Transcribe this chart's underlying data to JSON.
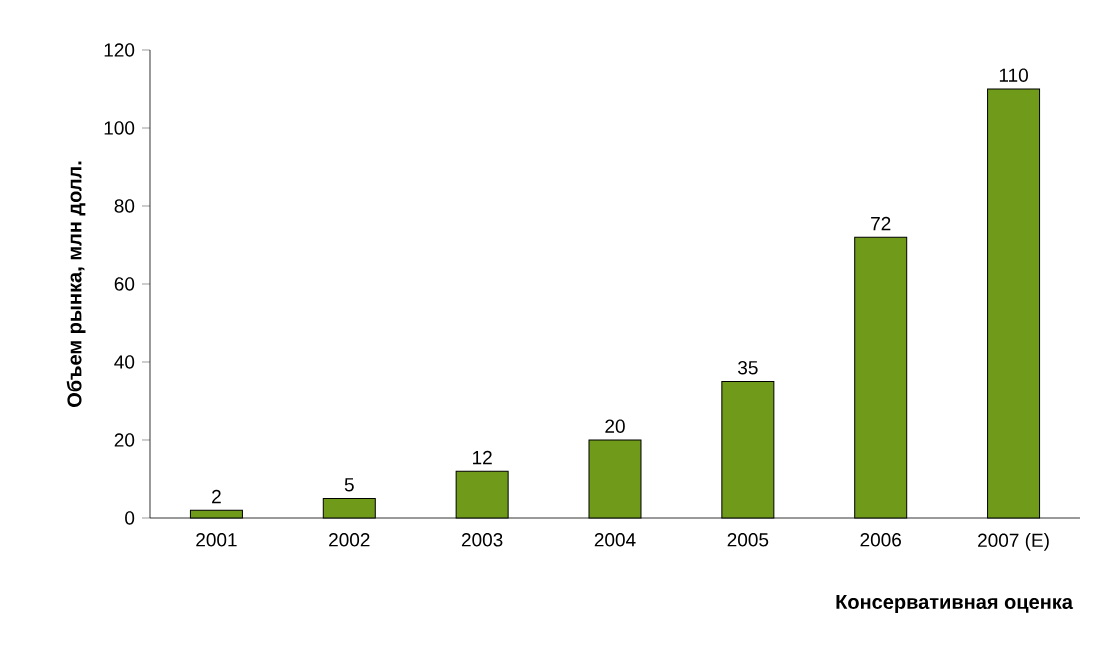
{
  "chart_data": {
    "type": "bar",
    "ylabel": "Объем рынка, млн долл.",
    "xlabel": "Консервативная оценка",
    "categories": [
      "2001",
      "2002",
      "2003",
      "2004",
      "2005",
      "2006",
      "2007 (E)"
    ],
    "values": [
      2,
      5,
      12,
      20,
      35,
      72,
      110
    ],
    "color": "#6f9a1a",
    "ylim": [
      0,
      120
    ],
    "yticks": [
      0,
      20,
      40,
      60,
      80,
      100,
      120
    ],
    "data_labels": true
  }
}
